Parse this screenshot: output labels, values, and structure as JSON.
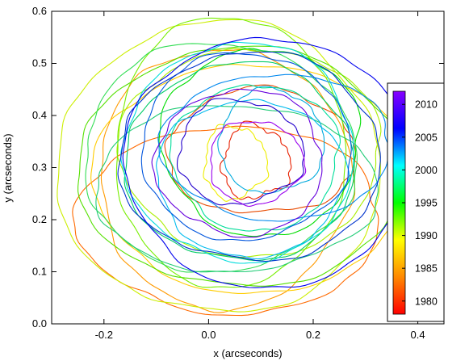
{
  "chart_data": {
    "type": "line",
    "xlabel": "x (arcseconds)",
    "ylabel": "y (arcseconds)",
    "xlim": [
      -0.3,
      0.45
    ],
    "ylim": [
      0,
      0.6
    ],
    "x_ticks": [
      {
        "value": -0.2,
        "label": "-0.2"
      },
      {
        "value": 0.0,
        "label": "0.0"
      },
      {
        "value": 0.2,
        "label": "0.2"
      },
      {
        "value": 0.4,
        "label": "0.4"
      }
    ],
    "y_ticks": [
      {
        "value": 0.0,
        "label": "0.0"
      },
      {
        "value": 0.1,
        "label": "0.1"
      },
      {
        "value": 0.2,
        "label": "0.2"
      },
      {
        "value": 0.3,
        "label": "0.3"
      },
      {
        "value": 0.4,
        "label": "0.4"
      },
      {
        "value": 0.5,
        "label": "0.5"
      },
      {
        "value": 0.6,
        "label": "0.6"
      }
    ],
    "grid": false,
    "colorbar": {
      "placement": "right",
      "range": [
        1978,
        2012
      ],
      "colors": [
        "#ff0000",
        "#ff8800",
        "#ffff00",
        "#00ff00",
        "#00ffff",
        "#0000ff",
        "#8800ff"
      ],
      "ticks": [
        {
          "value": 1980,
          "label": "1980"
        },
        {
          "value": 1985,
          "label": "1985"
        },
        {
          "value": 1990,
          "label": "1990"
        },
        {
          "value": 1995,
          "label": "1995"
        },
        {
          "value": 2000,
          "label": "2000"
        },
        {
          "value": 2005,
          "label": "2005"
        },
        {
          "value": 2010,
          "label": "2010"
        }
      ]
    },
    "series": [
      {
        "year": 1980,
        "color": "#e82000",
        "center": [
          0.09,
          0.31
        ],
        "rx": 0.065,
        "ry": 0.07,
        "wobble": 0.18
      },
      {
        "year": 1982,
        "color": "#ff6a00",
        "center": [
          0.04,
          0.2
        ],
        "rx": 0.29,
        "ry": 0.18,
        "wobble": 0.05
      },
      {
        "year": 1983,
        "color": "#ff9a00",
        "center": [
          0.03,
          0.28
        ],
        "rx": 0.24,
        "ry": 0.25,
        "wobble": 0.05
      },
      {
        "year": 1984,
        "color": "#e84a00",
        "center": [
          0.1,
          0.33
        ],
        "rx": 0.18,
        "ry": 0.12,
        "wobble": 0.08
      },
      {
        "year": 1986,
        "color": "#ffcc00",
        "center": [
          0.08,
          0.28
        ],
        "rx": 0.3,
        "ry": 0.22,
        "wobble": 0.04
      },
      {
        "year": 1987,
        "color": "#eeee00",
        "center": [
          0.05,
          0.31
        ],
        "rx": 0.06,
        "ry": 0.07,
        "wobble": 0.15
      },
      {
        "year": 1988,
        "color": "#ccee00",
        "center": [
          0.02,
          0.3
        ],
        "rx": 0.31,
        "ry": 0.28,
        "wobble": 0.04
      },
      {
        "year": 1989,
        "color": "#aaee00",
        "center": [
          0.08,
          0.33
        ],
        "rx": 0.25,
        "ry": 0.2,
        "wobble": 0.05
      },
      {
        "year": 1990,
        "color": "#77ee00",
        "center": [
          0.04,
          0.33
        ],
        "rx": 0.22,
        "ry": 0.26,
        "wobble": 0.04
      },
      {
        "year": 1991,
        "color": "#55e000",
        "center": [
          0.06,
          0.3
        ],
        "rx": 0.31,
        "ry": 0.23,
        "wobble": 0.04
      },
      {
        "year": 1992,
        "color": "#00dd00",
        "center": [
          0.1,
          0.35
        ],
        "rx": 0.19,
        "ry": 0.18,
        "wobble": 0.06
      },
      {
        "year": 1993,
        "color": "#33dd55",
        "center": [
          0.02,
          0.32
        ],
        "rx": 0.26,
        "ry": 0.22,
        "wobble": 0.05
      },
      {
        "year": 1994,
        "color": "#00cc66",
        "center": [
          0.06,
          0.31
        ],
        "rx": 0.22,
        "ry": 0.19,
        "wobble": 0.05
      },
      {
        "year": 1995,
        "color": "#00dd99",
        "center": [
          0.09,
          0.32
        ],
        "rx": 0.16,
        "ry": 0.14,
        "wobble": 0.07
      },
      {
        "year": 1996,
        "color": "#22cc77",
        "center": [
          0.05,
          0.26
        ],
        "rx": 0.27,
        "ry": 0.16,
        "wobble": 0.05
      },
      {
        "year": 1998,
        "color": "#00dddd",
        "center": [
          0.06,
          0.33
        ],
        "rx": 0.22,
        "ry": 0.21,
        "wobble": 0.05
      },
      {
        "year": 1999,
        "color": "#00bbee",
        "center": [
          0.08,
          0.28
        ],
        "rx": 0.18,
        "ry": 0.15,
        "wobble": 0.06
      },
      {
        "year": 2000,
        "color": "#00aadd",
        "center": [
          0.12,
          0.35
        ],
        "rx": 0.1,
        "ry": 0.1,
        "wobble": 0.08
      },
      {
        "year": 2002,
        "color": "#0088ee",
        "center": [
          0.13,
          0.34
        ],
        "rx": 0.22,
        "ry": 0.14,
        "wobble": 0.05
      },
      {
        "year": 2004,
        "color": "#0055dd",
        "center": [
          0.07,
          0.34
        ],
        "rx": 0.2,
        "ry": 0.18,
        "wobble": 0.05
      },
      {
        "year": 2005,
        "color": "#0033cc",
        "center": [
          0.08,
          0.32
        ],
        "rx": 0.25,
        "ry": 0.2,
        "wobble": 0.05
      },
      {
        "year": 2006,
        "color": "#0000ee",
        "center": [
          0.11,
          0.31
        ],
        "rx": 0.27,
        "ry": 0.24,
        "wobble": 0.04
      },
      {
        "year": 2007,
        "color": "#2200cc",
        "center": [
          0.06,
          0.33
        ],
        "rx": 0.12,
        "ry": 0.1,
        "wobble": 0.1
      },
      {
        "year": 2009,
        "color": "#6600dd",
        "center": [
          0.06,
          0.31
        ],
        "rx": 0.16,
        "ry": 0.14,
        "wobble": 0.07
      },
      {
        "year": 2011,
        "color": "#9900ee",
        "center": [
          0.09,
          0.31
        ],
        "rx": 0.09,
        "ry": 0.08,
        "wobble": 0.09
      }
    ]
  }
}
